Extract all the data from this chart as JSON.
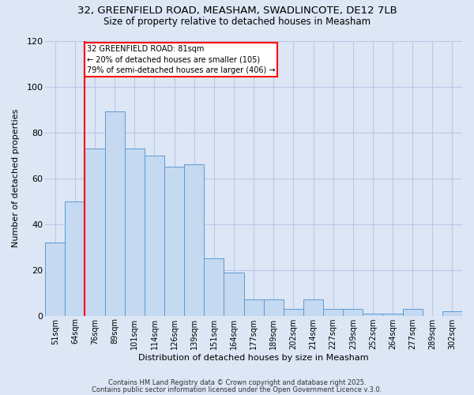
{
  "title1": "32, GREENFIELD ROAD, MEASHAM, SWADLINCOTE, DE12 7LB",
  "title2": "Size of property relative to detached houses in Measham",
  "xlabel": "Distribution of detached houses by size in Measham",
  "ylabel": "Number of detached properties",
  "bins": [
    "51sqm",
    "64sqm",
    "76sqm",
    "89sqm",
    "101sqm",
    "114sqm",
    "126sqm",
    "139sqm",
    "151sqm",
    "164sqm",
    "177sqm",
    "189sqm",
    "202sqm",
    "214sqm",
    "227sqm",
    "239sqm",
    "252sqm",
    "264sqm",
    "277sqm",
    "289sqm",
    "302sqm"
  ],
  "values": [
    32,
    50,
    73,
    89,
    73,
    70,
    65,
    66,
    25,
    19,
    7,
    7,
    3,
    7,
    3,
    3,
    1,
    1,
    3,
    0,
    2
  ],
  "bar_color": "#c5d9f1",
  "bar_edge_color": "#5b9bd5",
  "bar_edge_width": 0.7,
  "red_line_bin_index": 2,
  "annotation_line1": "32 GREENFIELD ROAD: 81sqm",
  "annotation_line2": "← 20% of detached houses are smaller (105)",
  "annotation_line3": "79% of semi-detached houses are larger (406) →",
  "annotation_box_color": "white",
  "annotation_box_edge_color": "red",
  "red_line_color": "red",
  "background_color": "#dce6f5",
  "plot_bg_color": "#dce6f5",
  "grid_color": "#b8c8e8",
  "ylim": [
    0,
    120
  ],
  "yticks": [
    0,
    20,
    40,
    60,
    80,
    100,
    120
  ],
  "footnote1": "Contains HM Land Registry data © Crown copyright and database right 2025.",
  "footnote2": "Contains public sector information licensed under the Open Government Licence v.3.0."
}
